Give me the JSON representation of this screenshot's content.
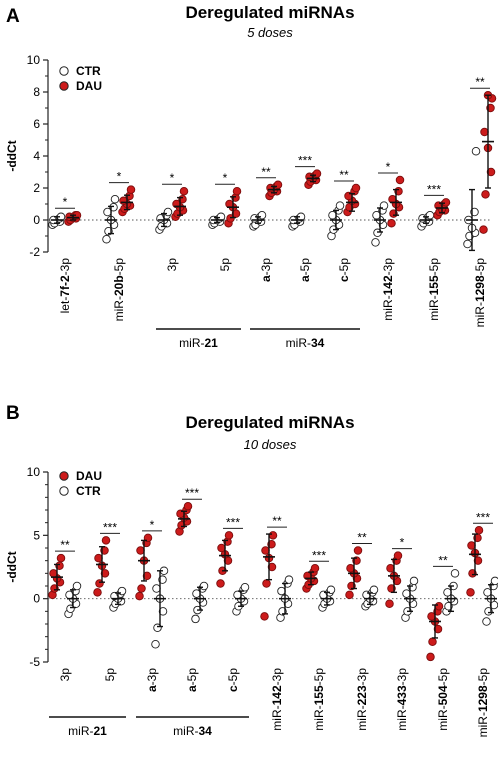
{
  "colors": {
    "dau": "#cc1b1b",
    "ctr": "#ffffff",
    "stroke": "#222222"
  },
  "chart_data": [
    {
      "type": "scatter",
      "panel": "A",
      "title": "Deregulated miRNAs",
      "subtitle": "5 doses",
      "ylabel": "-ddCt",
      "ylim": [
        -2,
        10
      ],
      "yticks": [
        -2,
        0,
        2,
        4,
        6,
        8,
        10
      ],
      "legend": [
        {
          "name": "CTR",
          "color_key": "ctr",
          "filled": false
        },
        {
          "name": "DAU",
          "color_key": "dau",
          "filled": true
        }
      ],
      "legend_position": "top-left",
      "categories": [
        {
          "parts": [
            {
              "t": "let-"
            },
            {
              "t": "7f-2",
              "b": true
            },
            {
              "t": "-3p"
            }
          ],
          "sig": "*",
          "ctr": {
            "points": [
              -0.3,
              -0.2,
              -0.1,
              0.0,
              0.0,
              0.1,
              0.2
            ],
            "mean": 0.0,
            "sd": 0.2
          },
          "dau": {
            "points": [
              -0.1,
              0.0,
              0.1,
              0.15,
              0.2,
              0.3,
              0.3
            ],
            "mean": 0.15,
            "sd": 0.15
          }
        },
        {
          "parts": [
            {
              "t": "miR-"
            },
            {
              "t": "20b",
              "b": true
            },
            {
              "t": "-5p"
            }
          ],
          "sig": "*",
          "ctr": {
            "points": [
              -1.2,
              -0.7,
              -0.3,
              0.0,
              0.5,
              0.8,
              1.3
            ],
            "mean": 0.0,
            "sd": 0.85
          },
          "dau": {
            "points": [
              0.5,
              0.7,
              0.9,
              1.0,
              1.2,
              1.5,
              1.9
            ],
            "mean": 1.1,
            "sd": 0.45
          }
        },
        {
          "parts": [
            {
              "t": "3p"
            }
          ],
          "sig": "*",
          "ctr": {
            "points": [
              -0.6,
              -0.4,
              -0.2,
              0.0,
              0.1,
              0.3,
              0.5
            ],
            "mean": 0.0,
            "sd": 0.4
          },
          "dau": {
            "points": [
              0.2,
              0.4,
              0.6,
              0.8,
              1.0,
              1.3,
              1.8
            ],
            "mean": 0.85,
            "sd": 0.55
          }
        },
        {
          "parts": [
            {
              "t": "5p"
            }
          ],
          "sig": "*",
          "ctr": {
            "points": [
              -0.3,
              -0.2,
              -0.1,
              0.0,
              0.0,
              0.1,
              0.2
            ],
            "mean": 0.0,
            "sd": 0.15
          },
          "dau": {
            "points": [
              -0.2,
              0.1,
              0.4,
              0.8,
              1.0,
              1.4,
              1.8
            ],
            "mean": 0.8,
            "sd": 0.65
          }
        },
        {
          "parts": [
            {
              "t": "a",
              "b": true
            },
            {
              "t": "-3p"
            }
          ],
          "sig": "**",
          "ctr": {
            "points": [
              -0.4,
              -0.3,
              -0.1,
              0.0,
              0.1,
              0.2,
              0.3
            ],
            "mean": 0.0,
            "sd": 0.2
          },
          "dau": {
            "points": [
              1.5,
              1.7,
              1.8,
              1.9,
              2.0,
              2.1,
              2.2
            ],
            "mean": 1.9,
            "sd": 0.2
          }
        },
        {
          "parts": [
            {
              "t": "a",
              "b": true
            },
            {
              "t": "-5p"
            }
          ],
          "sig": "***",
          "ctr": {
            "points": [
              -0.4,
              -0.3,
              -0.1,
              0.0,
              0.0,
              0.1,
              0.2
            ],
            "mean": 0.0,
            "sd": 0.2
          },
          "dau": {
            "points": [
              2.2,
              2.4,
              2.5,
              2.6,
              2.7,
              2.8,
              2.9
            ],
            "mean": 2.6,
            "sd": 0.2
          }
        },
        {
          "parts": [
            {
              "t": "c",
              "b": true
            },
            {
              "t": "-5p"
            }
          ],
          "sig": "**",
          "ctr": {
            "points": [
              -1.0,
              -0.6,
              -0.3,
              0.0,
              0.3,
              0.6,
              0.9
            ],
            "mean": 0.0,
            "sd": 0.6
          },
          "dau": {
            "points": [
              0.5,
              0.8,
              1.0,
              1.2,
              1.5,
              1.8,
              2.0
            ],
            "mean": 1.1,
            "sd": 0.55
          }
        },
        {
          "parts": [
            {
              "t": "miR-"
            },
            {
              "t": "142",
              "b": true
            },
            {
              "t": "-3p"
            }
          ],
          "sig": "*",
          "ctr": {
            "points": [
              -1.4,
              -0.8,
              -0.3,
              0.0,
              0.3,
              0.6,
              0.9
            ],
            "mean": 0.0,
            "sd": 0.75
          },
          "dau": {
            "points": [
              -0.2,
              0.4,
              0.8,
              1.0,
              1.3,
              1.8,
              2.5
            ],
            "mean": 1.1,
            "sd": 0.8
          }
        },
        {
          "parts": [
            {
              "t": "miR-"
            },
            {
              "t": "155",
              "b": true
            },
            {
              "t": "-5p"
            }
          ],
          "sig": "***",
          "ctr": {
            "points": [
              -0.4,
              -0.2,
              -0.1,
              0.0,
              0.1,
              0.2,
              0.3
            ],
            "mean": 0.0,
            "sd": 0.2
          },
          "dau": {
            "points": [
              0.3,
              0.5,
              0.6,
              0.7,
              0.9,
              1.0,
              1.1
            ],
            "mean": 0.75,
            "sd": 0.3
          }
        },
        {
          "parts": [
            {
              "t": "miR-"
            },
            {
              "t": "1298",
              "b": true
            },
            {
              "t": "-5p"
            }
          ],
          "sig": "**",
          "ctr": {
            "points": [
              -1.5,
              -1.0,
              -0.8,
              -0.5,
              0.0,
              0.5,
              4.3
            ],
            "mean": 0.0,
            "sd": 1.9
          },
          "dau": {
            "points": [
              -0.6,
              1.6,
              3.0,
              4.5,
              5.5,
              7.0,
              7.6,
              7.8
            ],
            "mean": 4.9,
            "sd": 2.9
          }
        }
      ],
      "groups": [
        {
          "label_parts": [
            {
              "t": "miR-"
            },
            {
              "t": "21",
              "b": true
            }
          ],
          "from": 2,
          "to": 3
        },
        {
          "label_parts": [
            {
              "t": "miR-"
            },
            {
              "t": "34",
              "b": true
            }
          ],
          "from": 4,
          "to": 6
        }
      ]
    },
    {
      "type": "scatter",
      "panel": "B",
      "title": "Deregulated miRNAs",
      "subtitle": "10 doses",
      "ylabel": "-ddCt",
      "ylim": [
        -5,
        10
      ],
      "yticks": [
        -5,
        0,
        5,
        10
      ],
      "legend": [
        {
          "name": "DAU",
          "color_key": "dau",
          "filled": true
        },
        {
          "name": "CTR",
          "color_key": "ctr",
          "filled": false
        }
      ],
      "legend_position": "top-left",
      "categories": [
        {
          "parts": [
            {
              "t": "3p"
            }
          ],
          "sig": "**",
          "ctr": {
            "points": [
              -1.2,
              -0.8,
              -0.4,
              0.0,
              0.3,
              0.6,
              1.0
            ],
            "mean": 0.0,
            "sd": 0.7
          },
          "dau": {
            "points": [
              0.3,
              0.8,
              1.3,
              1.6,
              2.0,
              2.6,
              3.2
            ],
            "mean": 1.7,
            "sd": 1.0
          }
        },
        {
          "parts": [
            {
              "t": "5p"
            }
          ],
          "sig": "***",
          "ctr": {
            "points": [
              -0.7,
              -0.4,
              -0.2,
              0.0,
              0.2,
              0.4,
              0.6
            ],
            "mean": 0.0,
            "sd": 0.45
          },
          "dau": {
            "points": [
              0.5,
              1.2,
              2.0,
              2.6,
              3.2,
              3.8,
              4.6
            ],
            "mean": 2.7,
            "sd": 1.4
          }
        },
        {
          "parts": [
            {
              "t": "a",
              "b": true
            },
            {
              "t": "-3p"
            }
          ],
          "sig": "*",
          "ctr": {
            "points": [
              -3.6,
              -2.3,
              -1.0,
              0.0,
              0.8,
              1.5,
              2.2
            ],
            "mean": 0.0,
            "sd": 2.2
          },
          "dau": {
            "points": [
              0.2,
              0.8,
              1.8,
              3.0,
              3.8,
              4.4,
              4.8
            ],
            "mean": 3.0,
            "sd": 1.6
          }
        },
        {
          "parts": [
            {
              "t": "a",
              "b": true
            },
            {
              "t": "-5p"
            }
          ],
          "sig": "***",
          "ctr": {
            "points": [
              -1.6,
              -0.9,
              -0.3,
              0.0,
              0.4,
              0.8,
              1.0
            ],
            "mean": 0.0,
            "sd": 0.9
          },
          "dau": {
            "points": [
              5.3,
              5.8,
              6.1,
              6.4,
              6.7,
              7.0,
              7.3
            ],
            "mean": 6.3,
            "sd": 0.6
          }
        },
        {
          "parts": [
            {
              "t": "c",
              "b": true
            },
            {
              "t": "-5p"
            }
          ],
          "sig": "***",
          "ctr": {
            "points": [
              -1.0,
              -0.6,
              -0.2,
              0.0,
              0.3,
              0.7,
              0.9
            ],
            "mean": 0.0,
            "sd": 0.6
          },
          "dau": {
            "points": [
              1.2,
              2.2,
              3.0,
              3.5,
              4.0,
              4.5,
              5.0
            ],
            "mean": 3.4,
            "sd": 1.2
          }
        },
        {
          "parts": [
            {
              "t": "miR-"
            },
            {
              "t": "142",
              "b": true
            },
            {
              "t": "-3p"
            }
          ],
          "sig": "**",
          "ctr": {
            "points": [
              -1.5,
              -1.0,
              -0.4,
              0.0,
              0.6,
              1.2,
              1.5
            ],
            "mean": 0.0,
            "sd": 1.2
          },
          "dau": {
            "points": [
              -1.4,
              1.2,
              2.5,
              3.2,
              3.8,
              4.3,
              5.0
            ],
            "mean": 3.3,
            "sd": 1.8
          }
        },
        {
          "parts": [
            {
              "t": "miR-"
            },
            {
              "t": "155",
              "b": true
            },
            {
              "t": "-5p"
            }
          ],
          "sig": "***",
          "ctr": {
            "points": [
              -0.7,
              -0.4,
              -0.2,
              0.0,
              0.3,
              0.5,
              0.7
            ],
            "mean": 0.0,
            "sd": 0.5
          },
          "dau": {
            "points": [
              0.8,
              1.1,
              1.4,
              1.6,
              1.8,
              2.1,
              2.4
            ],
            "mean": 1.6,
            "sd": 0.5
          }
        },
        {
          "parts": [
            {
              "t": "miR-"
            },
            {
              "t": "223",
              "b": true
            },
            {
              "t": "-3p"
            }
          ],
          "sig": "**",
          "ctr": {
            "points": [
              -0.6,
              -0.4,
              -0.2,
              0.0,
              0.3,
              0.5,
              0.7
            ],
            "mean": 0.0,
            "sd": 0.45
          },
          "dau": {
            "points": [
              0.3,
              1.0,
              1.6,
              2.0,
              2.4,
              3.0,
              3.8
            ],
            "mean": 2.0,
            "sd": 1.2
          }
        },
        {
          "parts": [
            {
              "t": "miR-"
            },
            {
              "t": "433",
              "b": true
            },
            {
              "t": "-3p"
            }
          ],
          "sig": "*",
          "ctr": {
            "points": [
              -1.5,
              -1.0,
              -0.4,
              0.0,
              0.4,
              0.9,
              1.4
            ],
            "mean": 0.0,
            "sd": 1.0
          },
          "dau": {
            "points": [
              -0.4,
              0.8,
              1.4,
              1.8,
              2.4,
              3.0,
              3.4
            ],
            "mean": 1.8,
            "sd": 1.3
          }
        },
        {
          "parts": [
            {
              "t": "miR-"
            },
            {
              "t": "504",
              "b": true
            },
            {
              "t": "-5p"
            }
          ],
          "sig": "**",
          "ctr": {
            "points": [
              -1.0,
              -0.6,
              -0.2,
              0.0,
              0.5,
              1.0,
              2.0
            ],
            "mean": 0.0,
            "sd": 1.0
          },
          "dau": {
            "points": [
              -4.6,
              -3.4,
              -2.4,
              -1.8,
              -1.4,
              -1.0,
              -0.6
            ],
            "mean": -1.8,
            "sd": 1.3
          }
        },
        {
          "parts": [
            {
              "t": "miR-"
            },
            {
              "t": "1298",
              "b": true
            },
            {
              "t": "-5p"
            }
          ],
          "sig": "***",
          "ctr": {
            "points": [
              -1.8,
              -1.0,
              -0.5,
              0.0,
              0.5,
              1.0,
              1.4
            ],
            "mean": 0.0,
            "sd": 1.1
          },
          "dau": {
            "points": [
              0.5,
              2.0,
              3.0,
              3.6,
              4.2,
              4.8,
              5.4
            ],
            "mean": 3.5,
            "sd": 1.6
          }
        }
      ],
      "groups": [
        {
          "label_parts": [
            {
              "t": "miR-"
            },
            {
              "t": "21",
              "b": true
            }
          ],
          "from": 0,
          "to": 1
        },
        {
          "label_parts": [
            {
              "t": "miR-"
            },
            {
              "t": "34",
              "b": true
            }
          ],
          "from": 2,
          "to": 4
        }
      ]
    }
  ]
}
